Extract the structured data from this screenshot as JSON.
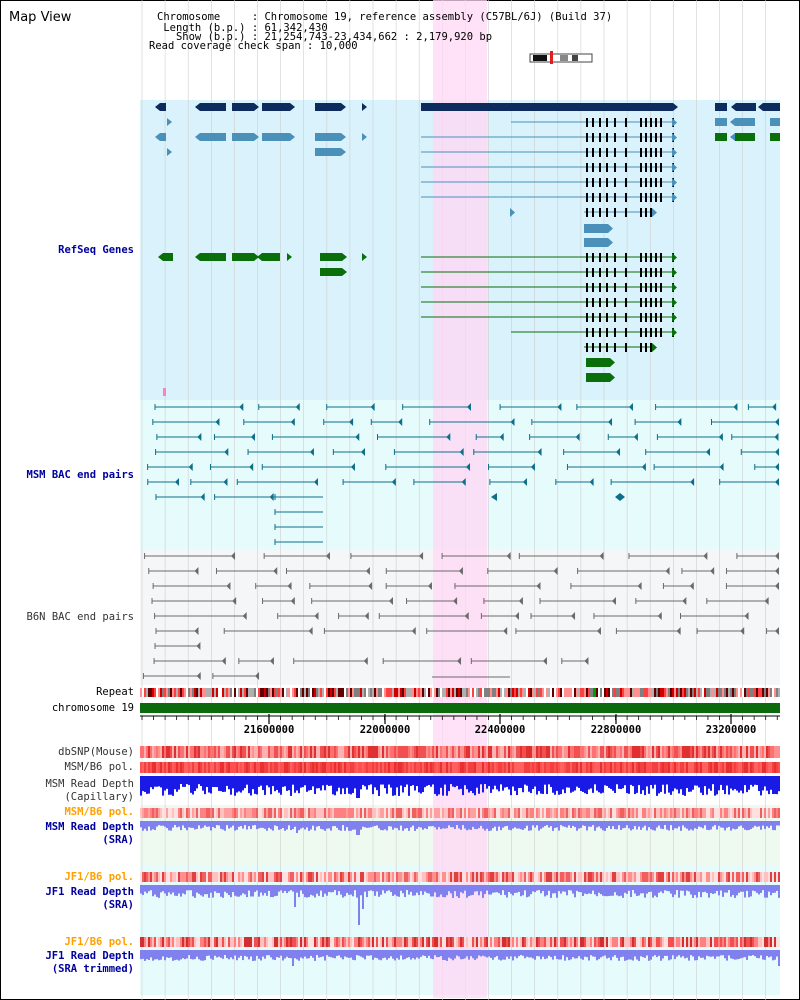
{
  "header": {
    "title": "Map View",
    "info_lines": [
      "Chromosome     : Chromosome 19, reference assembly (C57BL/6J) (Build 37)",
      " Length (b.p.) : 61,342,430",
      "   Show (b.p.) : 21,254,743-23,434,662 : 2,179,920 bp",
      "Read coverage check span : 10,000"
    ]
  },
  "tracks": {
    "refseq": "RefSeq Genes",
    "msm_bac": "MSM BAC end pairs",
    "b6n_bac": "B6N BAC end pairs",
    "repeat": "Repeat",
    "chromosome": "chromosome 19",
    "dbsnp": "dbSNP(Mouse)",
    "msm_b6_pol_1": "MSM/B6 pol.",
    "msm_read_depth_cap_1": "MSM Read Depth",
    "msm_read_depth_cap_2": "(Capillary)",
    "msm_b6_pol_2": "MSM/B6 pol.",
    "msm_read_depth_sra_1": "MSM Read Depth",
    "msm_read_depth_sra_2": "(SRA)",
    "jf1_b6_pol_1": "JF1/B6 pol.",
    "jf1_read_depth_sra_1": "JF1 Read Depth",
    "jf1_read_depth_sra_2": "(SRA)",
    "jf1_b6_pol_2": "JF1/B6 pol.",
    "jf1_read_depth_trim_1": "JF1 Read Depth",
    "jf1_read_depth_trim_2": "(SRA trimmed)"
  },
  "axis": {
    "ticks": [
      "21600000",
      "22000000",
      "22400000",
      "22800000",
      "23200000"
    ]
  },
  "colors": {
    "highlight": "#ffd7f5",
    "refseq_bg": "#d9f2fb",
    "bac_bg": "#e6fbfc",
    "navy": "#0d2b5c",
    "lightblue": "#4a90b8",
    "green": "#0a6e0a",
    "msm_line": "#0e6f8a",
    "b6n_line": "#6a6a6a",
    "depth_blue": "#1a1ae6",
    "depth_light": "#8080ee",
    "label_blue": "#0000a0",
    "label_orange": "#ffa000"
  }
}
